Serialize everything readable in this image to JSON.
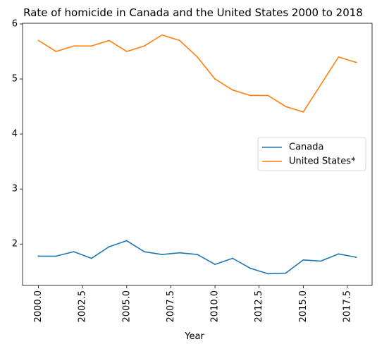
{
  "chart_data": {
    "type": "line",
    "title": "Rate of homicide in Canada and the United States 2000 to 2018",
    "xlabel": "Year",
    "ylabel": "",
    "x": [
      2000,
      2001,
      2002,
      2003,
      2004,
      2005,
      2006,
      2007,
      2008,
      2009,
      2010,
      2011,
      2012,
      2013,
      2014,
      2015,
      2016,
      2017,
      2018
    ],
    "series": [
      {
        "name": "Canada",
        "color": "#1f77b4",
        "values": [
          1.78,
          1.78,
          1.86,
          1.74,
          1.95,
          2.06,
          1.86,
          1.81,
          1.84,
          1.81,
          1.63,
          1.74,
          1.56,
          1.46,
          1.47,
          1.71,
          1.69,
          1.82,
          1.76
        ]
      },
      {
        "name": "United States*",
        "color": "#ff7f0e",
        "values": [
          5.7,
          5.5,
          5.6,
          5.6,
          5.7,
          5.5,
          5.6,
          5.8,
          5.7,
          5.4,
          5.0,
          4.8,
          4.7,
          4.7,
          4.5,
          4.4,
          4.9,
          5.4,
          5.3
        ]
      }
    ],
    "xlim": [
      1999.1,
      2018.9
    ],
    "ylim": [
      1.247,
      6.013
    ],
    "xticks": [
      2000.0,
      2002.5,
      2005.0,
      2007.5,
      2010.0,
      2012.5,
      2015.0,
      2017.5
    ],
    "xtick_labels": [
      "2000.0",
      "2002.5",
      "2005.0",
      "2007.5",
      "2010.0",
      "2012.5",
      "2015.0",
      "2017.5"
    ],
    "yticks": [
      2,
      3,
      4,
      5,
      6
    ],
    "ytick_labels": [
      "2",
      "3",
      "4",
      "5",
      "6"
    ],
    "grid": false,
    "legend_position": "center-right"
  }
}
